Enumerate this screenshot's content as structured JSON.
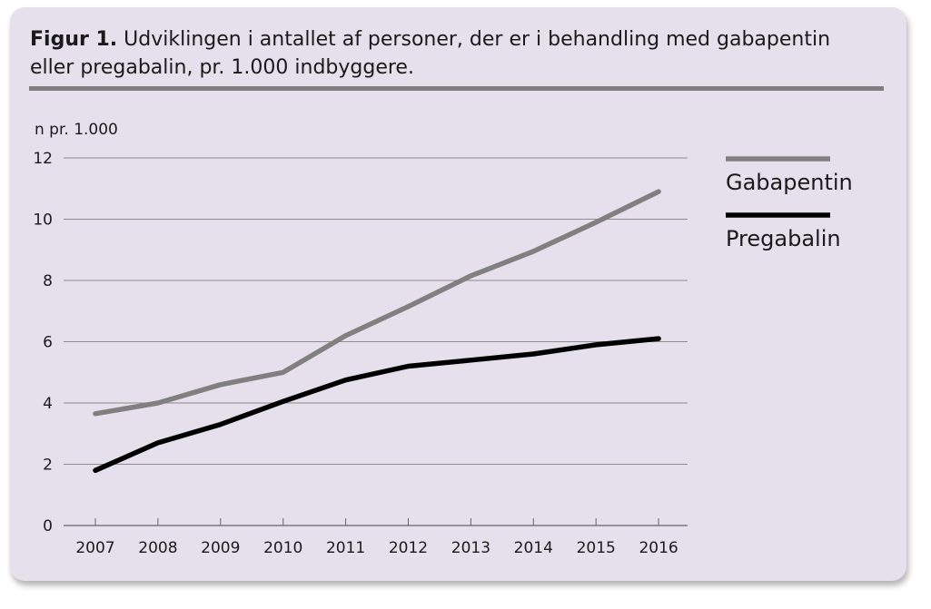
{
  "figure": {
    "label": "Figur 1.",
    "caption": "Udviklingen i antallet af personer, der er i behandling med gabapentin eller pregabalin, pr. 1.000 indbyggere."
  },
  "colors": {
    "background": "#e5e0ec",
    "gabapentin": "#808080",
    "pregabalin": "#000000",
    "rule": "#7f7f7f",
    "grid": "#8c8c8c"
  },
  "chart_data": {
    "type": "line",
    "ylabel": "n pr. 1.000",
    "xlabel": "",
    "x": [
      "2007",
      "2008",
      "2009",
      "2010",
      "2011",
      "2012",
      "2013",
      "2014",
      "2015",
      "2016"
    ],
    "ylim": [
      0,
      12
    ],
    "yticks": [
      "0",
      "2",
      "4",
      "6",
      "8",
      "10",
      "12"
    ],
    "grid": "horizontal",
    "legend_position": "right",
    "series": [
      {
        "name": "Gabapentin",
        "color": "#808080",
        "values": [
          3.65,
          4.0,
          4.6,
          5.0,
          6.2,
          7.15,
          8.15,
          8.95,
          9.9,
          10.9
        ]
      },
      {
        "name": "Pregabalin",
        "color": "#000000",
        "values": [
          1.8,
          2.7,
          3.3,
          4.05,
          4.75,
          5.2,
          5.4,
          5.6,
          5.9,
          6.1
        ]
      }
    ]
  }
}
